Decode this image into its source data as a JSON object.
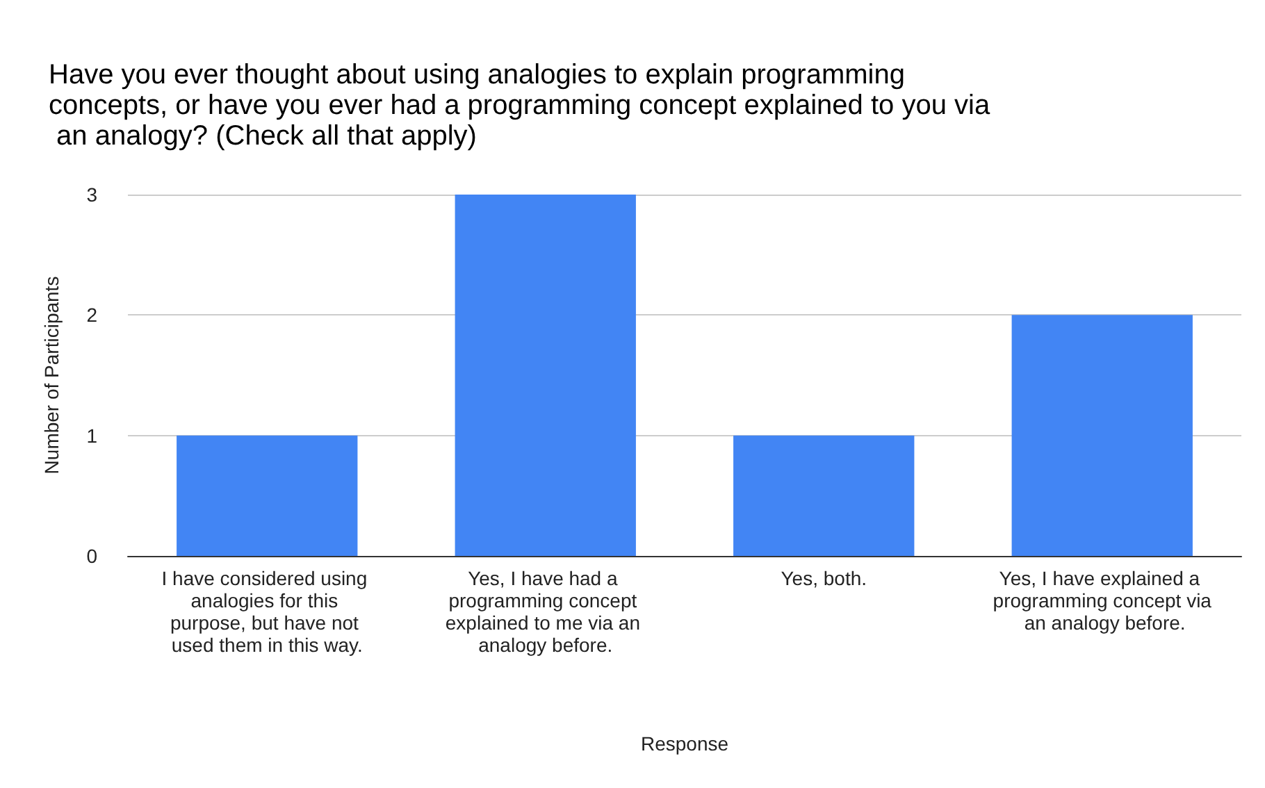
{
  "chart_data": {
    "type": "bar",
    "title": "Have you ever thought about using analogies to explain programming concepts, or have you ever had a programming concept explained to you via an analogy? (Check all that apply)",
    "xlabel": "Response",
    "ylabel": "Number of Participants",
    "categories": [
      "I have considered using analogies for this purpose, but have not used them in this way.",
      "Yes, I have had a programming concept explained to me via an analogy before.",
      "Yes, both.",
      "Yes, I have explained a programming concept via an analogy before."
    ],
    "values": [
      1,
      3,
      1,
      2
    ],
    "color": "#4285f4",
    "ylim": [
      0,
      3
    ],
    "yticks": [
      0,
      1,
      2,
      3
    ],
    "grid": "y"
  }
}
